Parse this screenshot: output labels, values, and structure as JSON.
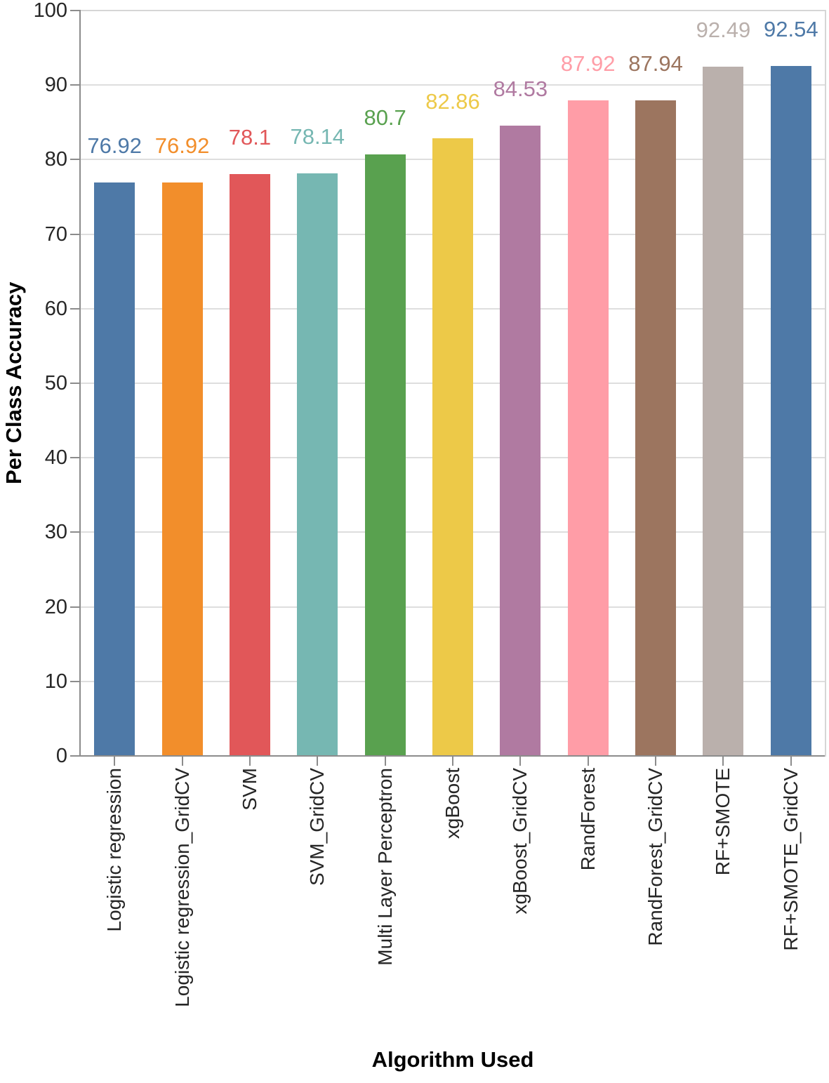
{
  "chart_data": {
    "type": "bar",
    "title": "",
    "xlabel": "Algorithm Used",
    "ylabel": "Per Class Accuracy",
    "ylim": [
      0,
      100
    ],
    "yticks": [
      0,
      10,
      20,
      30,
      40,
      50,
      60,
      70,
      80,
      90,
      100
    ],
    "grid": true,
    "legend": "none",
    "categories": [
      "Logistic regression",
      "Logistic regression_GridCV",
      "SVM",
      "SVM_GridCV",
      "Multi Layer Perceptron",
      "xgBoost",
      "xgBoost_GridCV",
      "RandForest",
      "RandForest_GridCV",
      "RF+SMOTE",
      "RF+SMOTE_GridCV"
    ],
    "values": [
      76.92,
      76.92,
      78.1,
      78.14,
      80.7,
      82.86,
      84.53,
      87.92,
      87.94,
      92.49,
      92.54
    ],
    "value_labels": [
      "76.92",
      "76.92",
      "78.1",
      "78.14",
      "80.7",
      "82.86",
      "84.53",
      "87.92",
      "87.94",
      "92.49",
      "92.54"
    ],
    "bar_colors": [
      "#4e79a7",
      "#f28e2b",
      "#e15759",
      "#76b7b2",
      "#59a14f",
      "#edc948",
      "#b07aa1",
      "#ff9da7",
      "#9c755f",
      "#bab0ac",
      "#4e79a7"
    ]
  },
  "colors": {
    "background": "#ffffff",
    "gridline": "#dedede",
    "plot_border": "#d6d6d6",
    "axis": "#8c8c8c",
    "tick_label": "#262626",
    "axis_title": "#000000"
  }
}
